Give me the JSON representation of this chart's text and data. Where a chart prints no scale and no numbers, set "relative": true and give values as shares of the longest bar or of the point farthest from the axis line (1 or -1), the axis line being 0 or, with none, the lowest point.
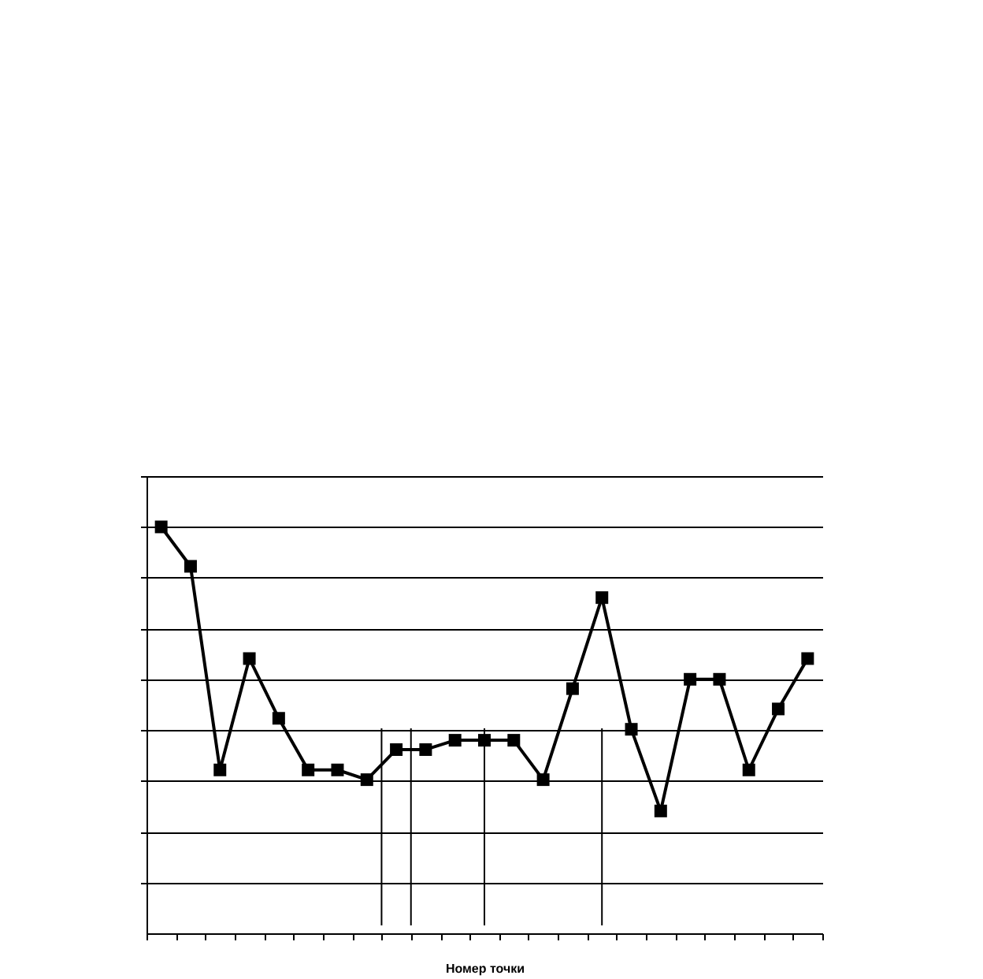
{
  "chart_data": {
    "type": "line",
    "relative": true,
    "xlabel": "Номер точки",
    "categories": [
      null,
      null,
      null,
      null,
      null,
      null,
      null,
      null,
      null,
      null,
      null,
      null,
      null,
      null,
      null,
      null,
      null,
      null,
      null,
      null,
      null,
      null,
      null
    ],
    "series": [
      {
        "color": "#000000",
        "values": [
          1,
          0.903,
          0.402,
          0.676,
          0.529,
          0.402,
          0.402,
          0.378,
          0.452,
          0.452,
          0.475,
          0.475,
          0.475,
          0.378,
          0.602,
          0.826,
          0.502,
          0.301,
          0.625,
          0.625,
          0.402,
          0.552,
          0.676
        ]
      }
    ],
    "grid": "y",
    "marker": "square",
    "line_style": "solid",
    "tick_labels": false
  }
}
